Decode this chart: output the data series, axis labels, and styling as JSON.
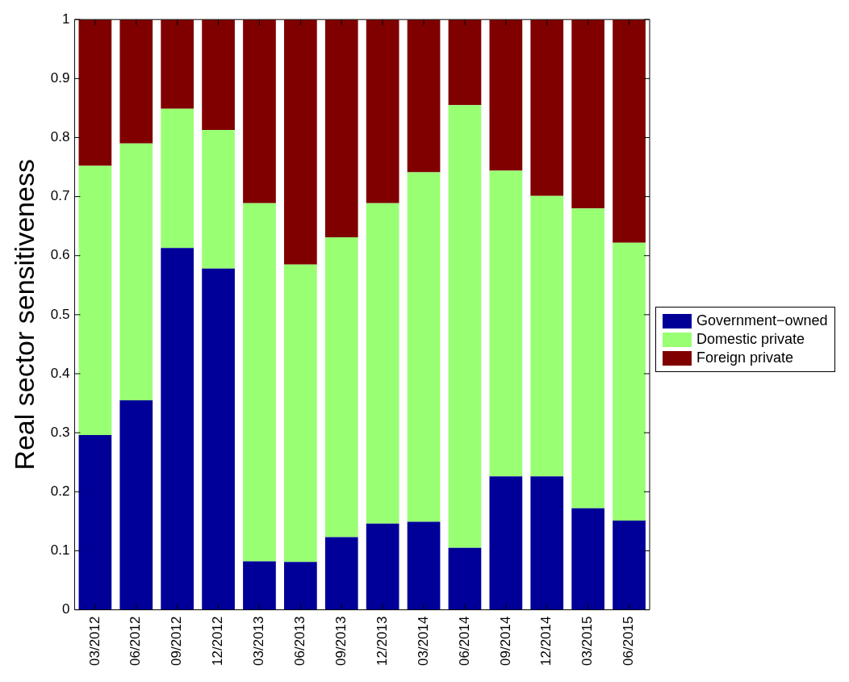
{
  "chart_data": {
    "type": "bar",
    "stacked": true,
    "ylabel": "Real sector sensitiveness",
    "categories": [
      "03/2012",
      "06/2012",
      "09/2012",
      "12/2012",
      "03/2013",
      "06/2013",
      "09/2013",
      "12/2013",
      "03/2014",
      "06/2014",
      "09/2014",
      "12/2014",
      "03/2015",
      "06/2015"
    ],
    "series": [
      {
        "name": "Government−owned",
        "color": "#000099",
        "values": [
          0.296,
          0.355,
          0.613,
          0.578,
          0.082,
          0.081,
          0.123,
          0.146,
          0.149,
          0.105,
          0.226,
          0.226,
          0.172,
          0.151
        ]
      },
      {
        "name": "Domestic private",
        "color": "#99ff73",
        "values": [
          0.456,
          0.435,
          0.236,
          0.235,
          0.607,
          0.504,
          0.508,
          0.543,
          0.592,
          0.75,
          0.518,
          0.475,
          0.508,
          0.471
        ]
      },
      {
        "name": "Foreign private",
        "color": "#800000",
        "values": [
          0.248,
          0.21,
          0.151,
          0.187,
          0.311,
          0.415,
          0.369,
          0.311,
          0.259,
          0.145,
          0.256,
          0.299,
          0.32,
          0.378
        ]
      }
    ],
    "ylim": [
      0,
      1
    ],
    "yticks": [
      0,
      0.1,
      0.2,
      0.3,
      0.4,
      0.5,
      0.6,
      0.7,
      0.8,
      0.9,
      1
    ],
    "grid": false,
    "legend": "right"
  }
}
